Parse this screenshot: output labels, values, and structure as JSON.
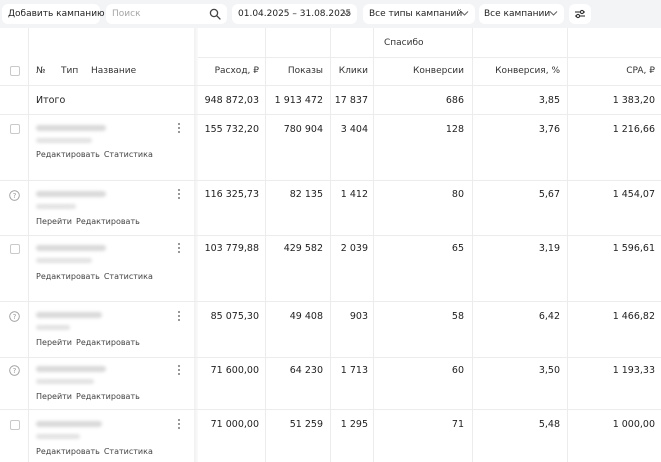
{
  "toolbar": {
    "add_campaign": "Добавить кампанию",
    "search_placeholder": "Поиск",
    "date_range": "01.04.2025 – 31.08.2025",
    "campaign_types": "Все типы кампаний",
    "campaigns": "Все кампании"
  },
  "table": {
    "goal_header": "Спасибо",
    "columns": {
      "number": "№",
      "type": "Тип",
      "name": "Название",
      "spend": "Расход, ₽",
      "impressions": "Показы",
      "clicks": "Клики",
      "conversions": "Конверсии",
      "conversion_rate": "Конверсия, %",
      "cpa": "CPA, ₽"
    },
    "total": {
      "label": "Итого",
      "spend": "948 872,03",
      "impressions": "1 913 472",
      "clicks": "17 837",
      "conversions": "686",
      "conversion_rate": "3,85",
      "cpa": "1 383,20"
    },
    "rows": [
      {
        "status": "checkbox",
        "action1": "Редактировать",
        "action2": "Статистика",
        "spend": "155 732,20",
        "impressions": "780 904",
        "clicks": "3 404",
        "conversions": "128",
        "conversion_rate": "3,76",
        "cpa": "1 216,66"
      },
      {
        "status": "question",
        "action1": "Перейти",
        "action2": "Редактировать",
        "spend": "116 325,73",
        "impressions": "82 135",
        "clicks": "1 412",
        "conversions": "80",
        "conversion_rate": "5,67",
        "cpa": "1 454,07"
      },
      {
        "status": "checkbox",
        "action1": "Редактировать",
        "action2": "Статистика",
        "spend": "103 779,88",
        "impressions": "429 582",
        "clicks": "2 039",
        "conversions": "65",
        "conversion_rate": "3,19",
        "cpa": "1 596,61"
      },
      {
        "status": "question",
        "action1": "Перейти",
        "action2": "Редактировать",
        "spend": "85 075,30",
        "impressions": "49 408",
        "clicks": "903",
        "conversions": "58",
        "conversion_rate": "6,42",
        "cpa": "1 466,82"
      },
      {
        "status": "question",
        "action1": "Перейти",
        "action2": "Редактировать",
        "spend": "71 600,00",
        "impressions": "64 230",
        "clicks": "1 713",
        "conversions": "60",
        "conversion_rate": "3,50",
        "cpa": "1 193,33"
      },
      {
        "status": "checkbox",
        "action1": "Редактировать",
        "action2": "Статистика",
        "spend": "71 000,00",
        "impressions": "51 259",
        "clicks": "1 295",
        "conversions": "71",
        "conversion_rate": "5,48",
        "cpa": "1 000,00"
      }
    ]
  }
}
